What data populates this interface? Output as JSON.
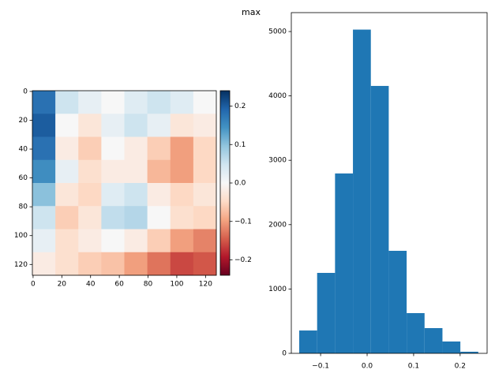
{
  "chart_data": [
    {
      "type": "heatmap",
      "colormap": "RdBu",
      "xlim": [
        -0.5,
        127.5
      ],
      "ylim": [
        127.5,
        -0.5
      ],
      "xticks": [
        0,
        20,
        40,
        60,
        80,
        100,
        120
      ],
      "yticks": [
        0,
        20,
        40,
        60,
        80,
        100,
        120
      ],
      "values": [
        [
          0.18,
          0.05,
          0.02,
          0.0,
          0.03,
          0.05,
          0.03,
          0.0
        ],
        [
          0.2,
          0.0,
          -0.03,
          0.02,
          0.05,
          0.02,
          -0.03,
          -0.02
        ],
        [
          0.18,
          -0.02,
          -0.06,
          0.0,
          -0.02,
          -0.06,
          -0.1,
          -0.05
        ],
        [
          0.15,
          0.02,
          -0.04,
          -0.02,
          -0.02,
          -0.08,
          -0.1,
          -0.05
        ],
        [
          0.1,
          -0.03,
          -0.05,
          0.03,
          0.05,
          -0.02,
          -0.05,
          -0.03
        ],
        [
          0.05,
          -0.06,
          -0.03,
          0.06,
          0.07,
          0.0,
          -0.04,
          -0.05
        ],
        [
          0.02,
          -0.04,
          -0.02,
          0.0,
          -0.02,
          -0.06,
          -0.1,
          -0.12
        ],
        [
          -0.02,
          -0.04,
          -0.06,
          -0.07,
          -0.1,
          -0.13,
          -0.16,
          -0.15
        ]
      ],
      "clim": [
        -0.24,
        0.24
      ],
      "cticks": [
        {
          "value": -0.2,
          "label": "−0.2"
        },
        {
          "value": -0.1,
          "label": "−0.1"
        },
        {
          "value": 0,
          "label": "0.0"
        },
        0.1,
        0.2
      ]
    },
    {
      "type": "histogram",
      "title": "max",
      "color": "#1f77b4",
      "bins": [
        -0.146,
        -0.1075,
        -0.069,
        -0.0305,
        0.008,
        0.0465,
        0.085,
        0.1235,
        0.162,
        0.2005,
        0.239
      ],
      "values": [
        355,
        1250,
        2795,
        5030,
        4155,
        1593,
        625,
        392,
        184,
        25
      ],
      "xlim": [
        -0.163,
        0.258
      ],
      "ylim": [
        0,
        5294
      ],
      "xticks": [
        {
          "value": -0.1,
          "label": "−0.1"
        },
        {
          "value": 0,
          "label": "0.0"
        },
        0.1,
        0.2
      ],
      "yticks": [
        0,
        1000,
        2000,
        3000,
        4000,
        5000
      ]
    }
  ]
}
